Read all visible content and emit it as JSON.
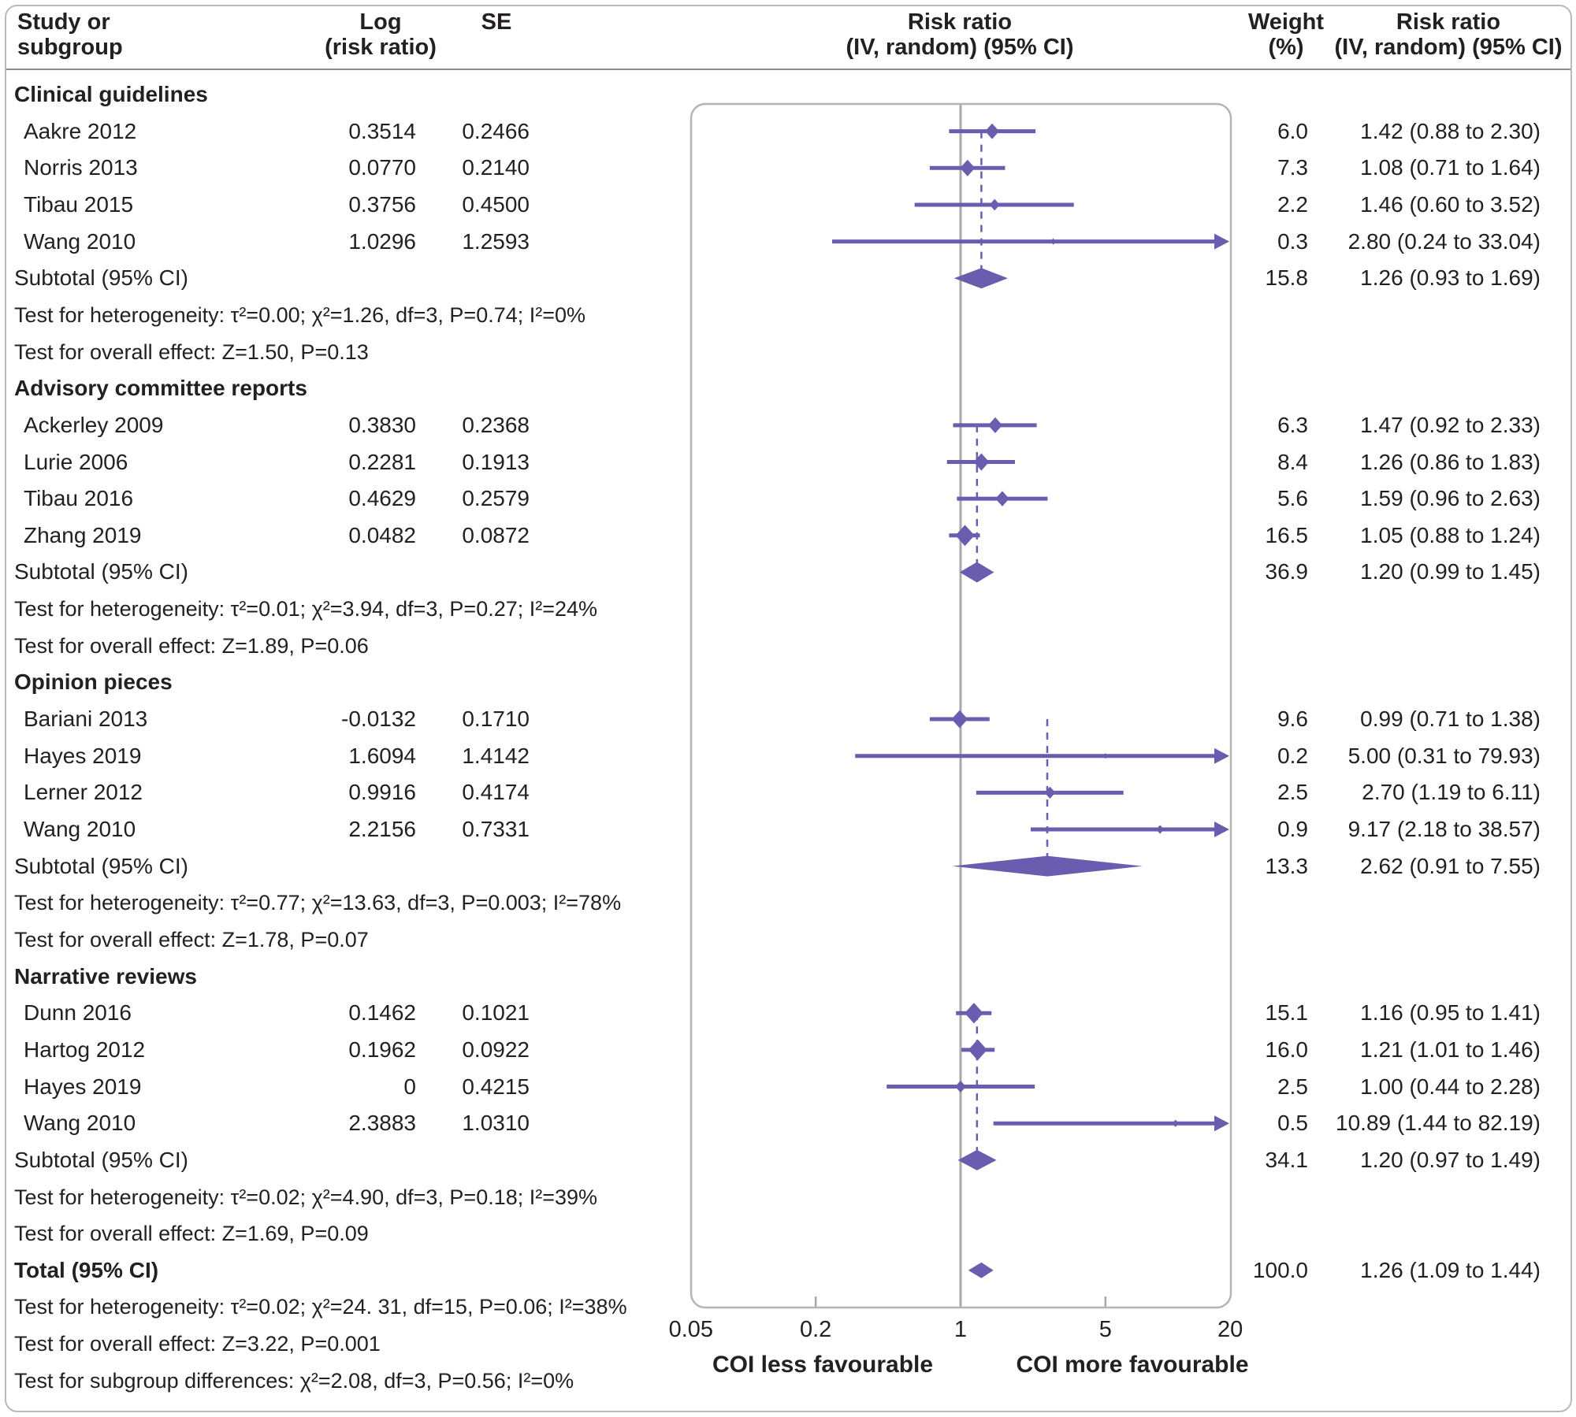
{
  "title": "Forest plot: risk ratio by publication type",
  "colors": {
    "marker_purple": "#6a5caf",
    "axis_gray": "#a9a9a9",
    "panel_border": "#b5b5b5",
    "text": "#242021"
  },
  "header": {
    "col_study": [
      "Study or",
      "subgroup"
    ],
    "col_log": [
      "Log",
      "(risk ratio)"
    ],
    "col_se": "SE",
    "col_plot": [
      "Risk ratio",
      "(IV, random) (95% CI)"
    ],
    "col_weight": [
      "Weight",
      "(%)"
    ],
    "col_rr": [
      "Risk ratio",
      "(IV, random) (95% CI)"
    ]
  },
  "chart_data": {
    "type": "forest",
    "x_axis": {
      "scale": "log",
      "min": 0.05,
      "max": 20,
      "ticks": [
        0.05,
        0.2,
        1,
        5,
        20
      ],
      "tick_labels": [
        "0.05",
        "0.2",
        "1",
        "5",
        "20"
      ],
      "reference_line": 1
    },
    "direction_labels": {
      "left": "COI less favourable",
      "right": "COI more favourable"
    },
    "groups": [
      {
        "name": "Clinical guidelines",
        "studies": [
          {
            "label": "Aakre 2012",
            "log_rr": "0.3514",
            "se": "0.2466",
            "weight": "6.0",
            "rr_text": "1.42 (0.88 to 2.30)",
            "rr": 1.42,
            "lo": 0.88,
            "hi": 2.3,
            "w": 6.0,
            "arrow": false
          },
          {
            "label": "Norris 2013",
            "log_rr": "0.0770",
            "se": "0.2140",
            "weight": "7.3",
            "rr_text": "1.08 (0.71 to 1.64)",
            "rr": 1.08,
            "lo": 0.71,
            "hi": 1.64,
            "w": 7.3,
            "arrow": false
          },
          {
            "label": "Tibau 2015",
            "log_rr": "0.3756",
            "se": "0.4500",
            "weight": "2.2",
            "rr_text": "1.46 (0.60 to 3.52)",
            "rr": 1.46,
            "lo": 0.6,
            "hi": 3.52,
            "w": 2.2,
            "arrow": false
          },
          {
            "label": "Wang 2010",
            "log_rr": "1.0296",
            "se": "1.2593",
            "weight": "0.3",
            "rr_text": "2.80 (0.24 to 33.04)",
            "rr": 2.8,
            "lo": 0.24,
            "hi": 33.04,
            "w": 0.3,
            "arrow": true
          }
        ],
        "subtotal": {
          "label": "Subtotal (95% CI)",
          "weight": "15.8",
          "rr_text": "1.26 (0.93 to 1.69)",
          "rr": 1.26,
          "lo": 0.93,
          "hi": 1.69
        },
        "heterogeneity": "Test for heterogeneity: τ²=0.00; χ²=1.26, df=3, P=0.74; I²=0%",
        "overall_effect": "Test for overall effect: Z=1.50, P=0.13"
      },
      {
        "name": "Advisory committee reports",
        "studies": [
          {
            "label": "Ackerley 2009",
            "log_rr": "0.3830",
            "se": "0.2368",
            "weight": "6.3",
            "rr_text": "1.47 (0.92 to 2.33)",
            "rr": 1.47,
            "lo": 0.92,
            "hi": 2.33,
            "w": 6.3,
            "arrow": false
          },
          {
            "label": "Lurie 2006",
            "log_rr": "0.2281",
            "se": "0.1913",
            "weight": "8.4",
            "rr_text": "1.26 (0.86 to 1.83)",
            "rr": 1.26,
            "lo": 0.86,
            "hi": 1.83,
            "w": 8.4,
            "arrow": false
          },
          {
            "label": "Tibau 2016",
            "log_rr": "0.4629",
            "se": "0.2579",
            "weight": "5.6",
            "rr_text": "1.59 (0.96 to 2.63)",
            "rr": 1.59,
            "lo": 0.96,
            "hi": 2.63,
            "w": 5.6,
            "arrow": false
          },
          {
            "label": "Zhang 2019",
            "log_rr": "0.0482",
            "se": "0.0872",
            "weight": "16.5",
            "rr_text": "1.05 (0.88 to 1.24)",
            "rr": 1.05,
            "lo": 0.88,
            "hi": 1.24,
            "w": 16.5,
            "arrow": false
          }
        ],
        "subtotal": {
          "label": "Subtotal (95% CI)",
          "weight": "36.9",
          "rr_text": "1.20 (0.99 to 1.45)",
          "rr": 1.2,
          "lo": 0.99,
          "hi": 1.45
        },
        "heterogeneity": "Test for heterogeneity: τ²=0.01; χ²=3.94, df=3, P=0.27; I²=24%",
        "overall_effect": "Test for overall effect: Z=1.89, P=0.06"
      },
      {
        "name": "Opinion pieces",
        "studies": [
          {
            "label": "Bariani 2013",
            "log_rr": "-0.0132",
            "se": "0.1710",
            "weight": "9.6",
            "rr_text": "0.99 (0.71 to 1.38)",
            "rr": 0.99,
            "lo": 0.71,
            "hi": 1.38,
            "w": 9.6,
            "arrow": false
          },
          {
            "label": "Hayes 2019",
            "log_rr": "1.6094",
            "se": "1.4142",
            "weight": "0.2",
            "rr_text": "5.00 (0.31 to 79.93)",
            "rr": 5.0,
            "lo": 0.31,
            "hi": 79.93,
            "w": 0.2,
            "arrow": true
          },
          {
            "label": "Lerner 2012",
            "log_rr": "0.9916",
            "se": "0.4174",
            "weight": "2.5",
            "rr_text": "2.70 (1.19 to 6.11)",
            "rr": 2.7,
            "lo": 1.19,
            "hi": 6.11,
            "w": 2.5,
            "arrow": false
          },
          {
            "label": "Wang 2010",
            "log_rr": "2.2156",
            "se": "0.7331",
            "weight": "0.9",
            "rr_text": "9.17 (2.18 to 38.57)",
            "rr": 9.17,
            "lo": 2.18,
            "hi": 38.57,
            "w": 0.9,
            "arrow": true
          }
        ],
        "subtotal": {
          "label": "Subtotal (95% CI)",
          "weight": "13.3",
          "rr_text": "2.62 (0.91 to 7.55)",
          "rr": 2.62,
          "lo": 0.91,
          "hi": 7.55
        },
        "heterogeneity": "Test for heterogeneity: τ²=0.77; χ²=13.63, df=3, P=0.003; I²=78%",
        "overall_effect": "Test for overall effect: Z=1.78, P=0.07"
      },
      {
        "name": "Narrative reviews",
        "studies": [
          {
            "label": "Dunn 2016",
            "log_rr": "0.1462",
            "se": "0.1021",
            "weight": "15.1",
            "rr_text": "1.16 (0.95 to 1.41)",
            "rr": 1.16,
            "lo": 0.95,
            "hi": 1.41,
            "w": 15.1,
            "arrow": false
          },
          {
            "label": "Hartog 2012",
            "log_rr": "0.1962",
            "se": "0.0922",
            "weight": "16.0",
            "rr_text": "1.21 (1.01 to 1.46)",
            "rr": 1.21,
            "lo": 1.01,
            "hi": 1.46,
            "w": 16.0,
            "arrow": false
          },
          {
            "label": "Hayes 2019",
            "log_rr": "0",
            "se": "0.4215",
            "weight": "2.5",
            "rr_text": "1.00 (0.44 to 2.28)",
            "rr": 1.0,
            "lo": 0.44,
            "hi": 2.28,
            "w": 2.5,
            "arrow": false
          },
          {
            "label": "Wang 2010",
            "log_rr": "2.3883",
            "se": "1.0310",
            "weight": "0.5",
            "rr_text": "10.89 (1.44 to 82.19)",
            "rr": 10.89,
            "lo": 1.44,
            "hi": 82.19,
            "w": 0.5,
            "arrow": true
          }
        ],
        "subtotal": {
          "label": "Subtotal (95% CI)",
          "weight": "34.1",
          "rr_text": "1.20 (0.97 to 1.49)",
          "rr": 1.2,
          "lo": 0.97,
          "hi": 1.49
        },
        "heterogeneity": "Test for heterogeneity: τ²=0.02; χ²=4.90, df=3, P=0.18; I²=39%",
        "overall_effect": "Test for overall effect: Z=1.69, P=0.09"
      }
    ],
    "total": {
      "label": "Total (95% CI)",
      "weight": "100.0",
      "rr_text": "1.26 (1.09 to 1.44)",
      "rr": 1.26,
      "lo": 1.09,
      "hi": 1.44
    },
    "total_heterogeneity": "Test for heterogeneity: τ²=0.02; χ²=24. 31, df=15, P=0.06; I²=38%",
    "total_overall_effect": "Test for overall effect: Z=3.22, P=0.001",
    "subgroup_differences": "Test for subgroup differences: χ²=2.08, df=3, P=0.56; I²=0%"
  }
}
